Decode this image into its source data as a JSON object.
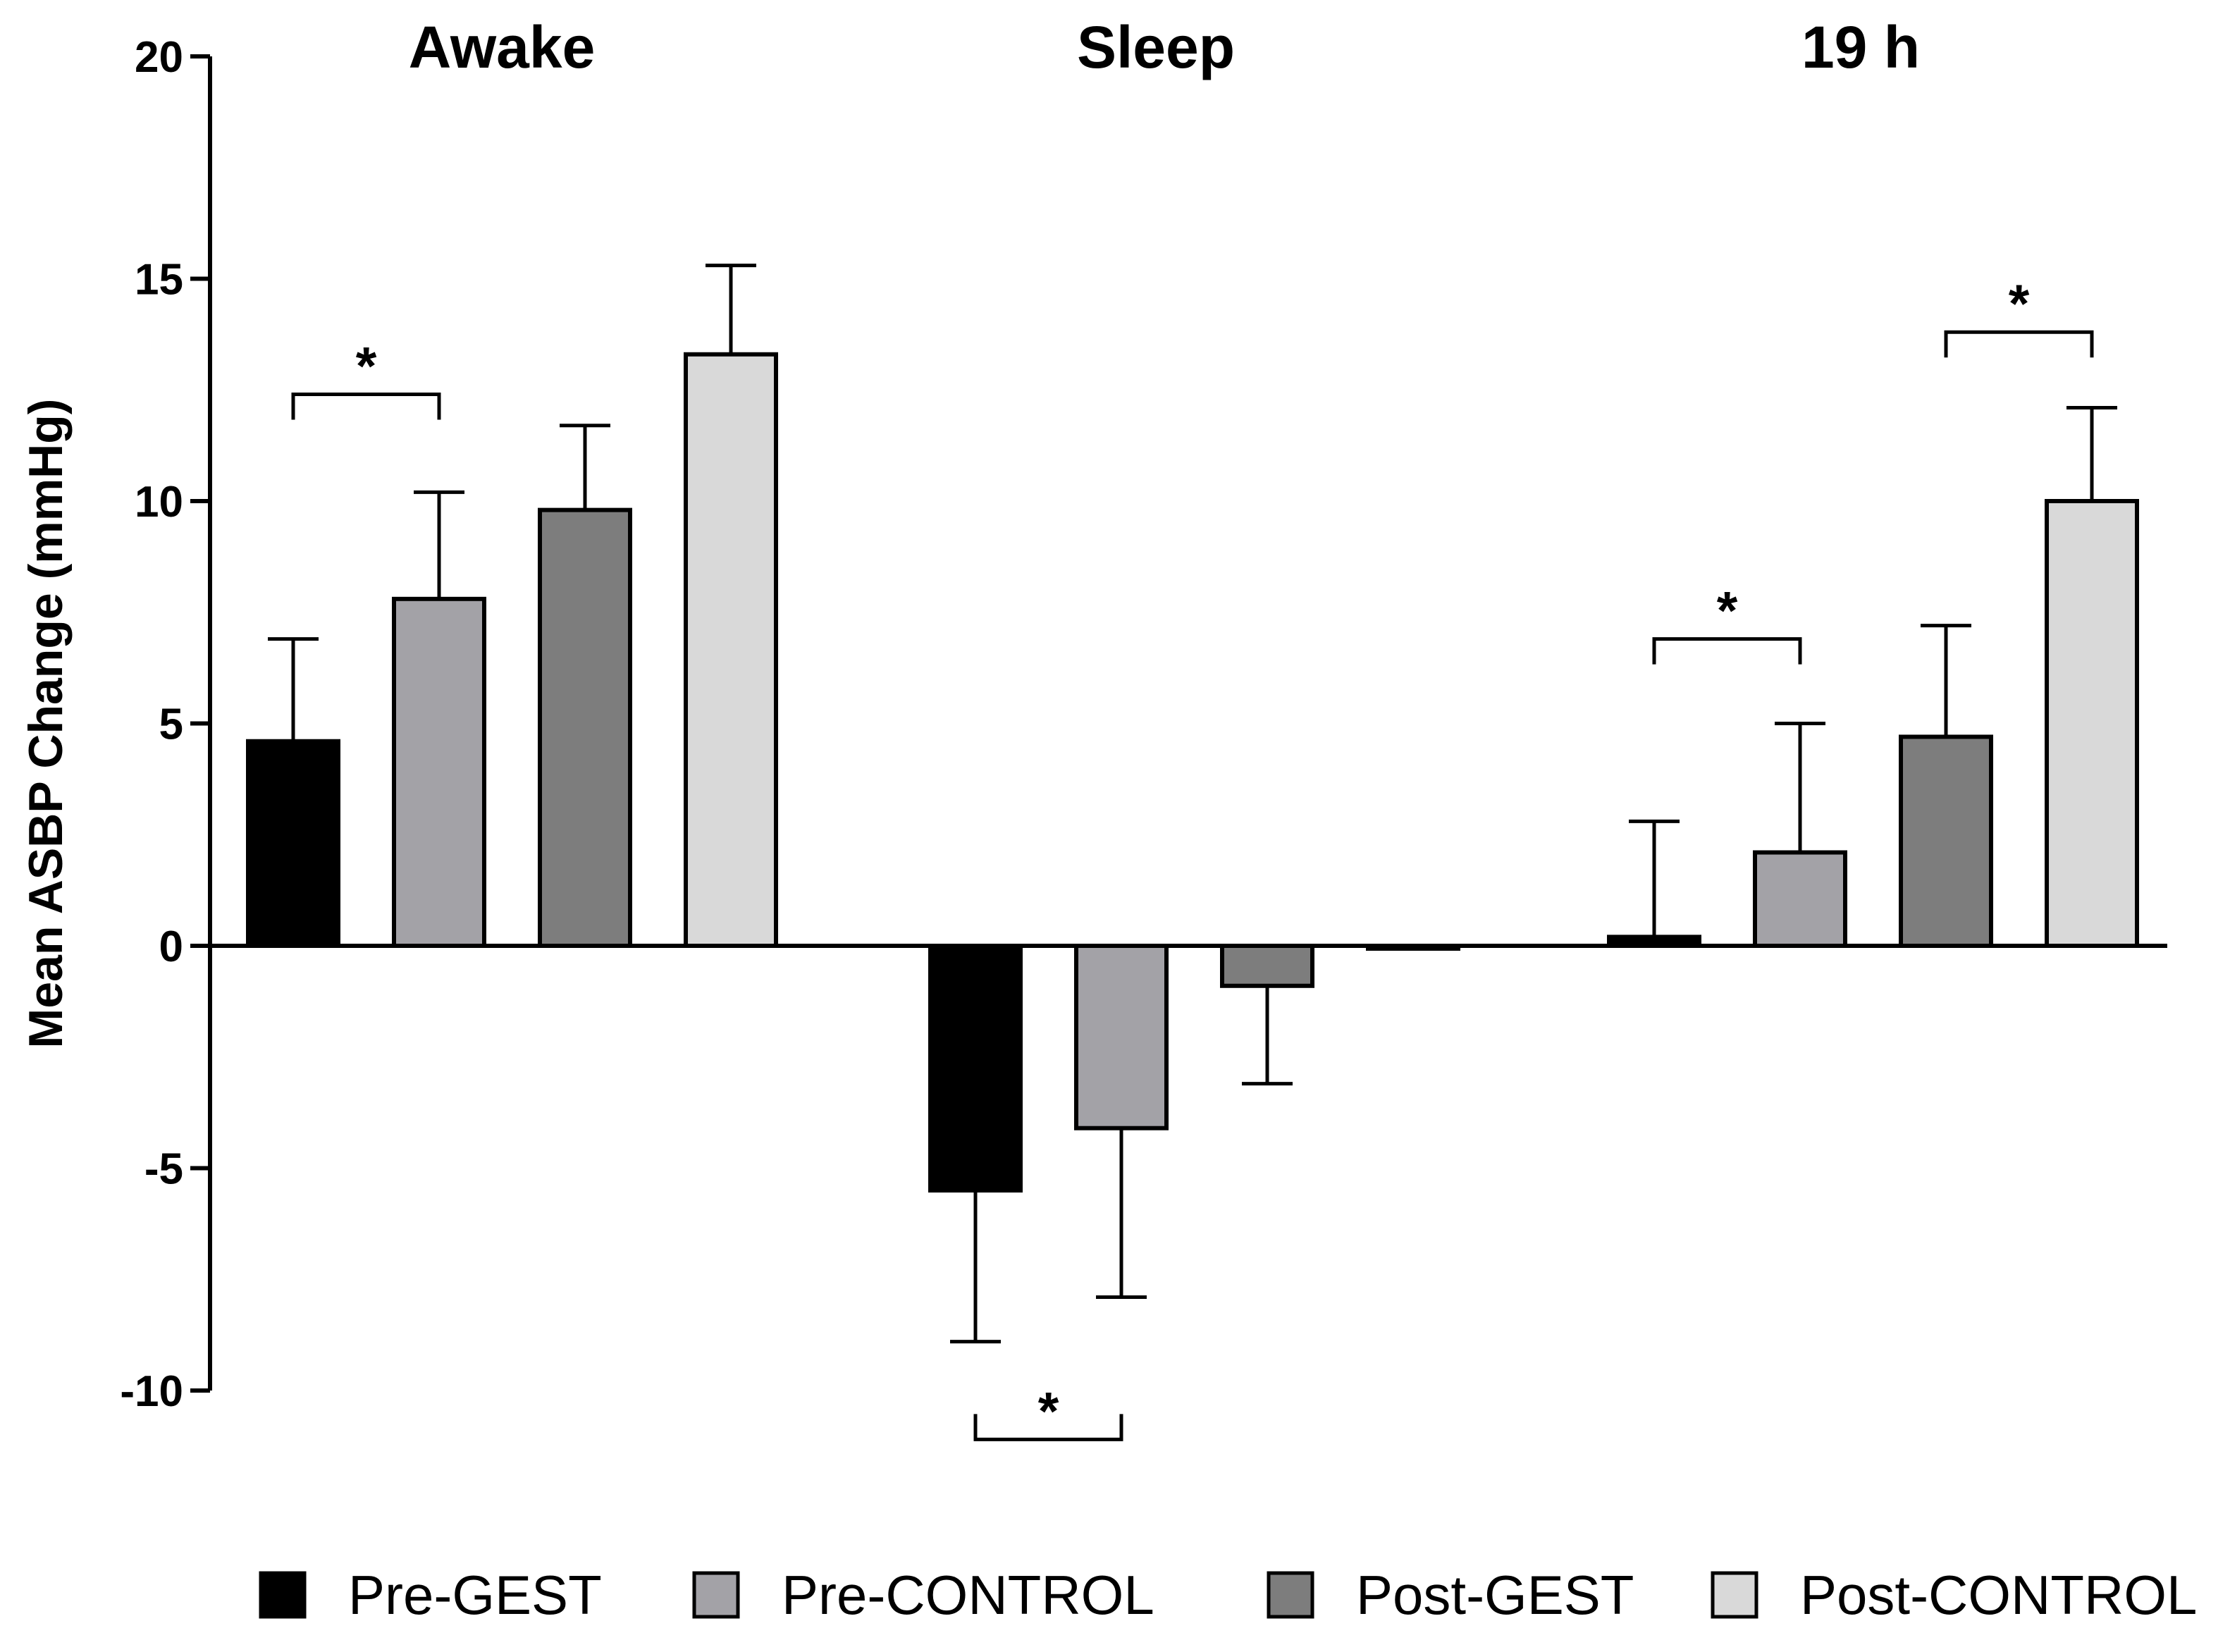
{
  "chart_data": {
    "type": "bar",
    "title": "",
    "xlabel": "",
    "ylabel": "Mean ASBP Change (mmHg)",
    "ylim": [
      -10,
      20
    ],
    "yticks": [
      "20",
      "15",
      "10",
      "5",
      "0",
      "-5",
      "-10"
    ],
    "yticks_values": [
      20,
      15,
      10,
      5,
      0,
      -5,
      -10
    ],
    "categories": [
      "Awake",
      "Sleep",
      "19 h"
    ],
    "series": [
      {
        "name": "Pre-GEST",
        "color": "#000000",
        "values": [
          4.6,
          -5.5,
          0.2
        ],
        "errors": [
          2.3,
          3.4,
          2.6
        ]
      },
      {
        "name": "Pre-CONTROL",
        "color": "#a3a2a7",
        "values": [
          7.8,
          -4.1,
          2.1
        ],
        "errors": [
          2.4,
          3.8,
          2.9
        ]
      },
      {
        "name": "Post-GEST",
        "color": "#7d7d7d",
        "values": [
          9.8,
          -0.9,
          4.7
        ],
        "errors": [
          1.9,
          2.2,
          2.5
        ]
      },
      {
        "name": "Post-CONTROL",
        "color": "#d9d9d9",
        "values": [
          13.3,
          0.0,
          10.0
        ],
        "errors": [
          2.0,
          0.0,
          2.1
        ]
      }
    ],
    "error_directions": [
      [
        "up",
        "down",
        "up"
      ],
      [
        "up",
        "down",
        "up"
      ],
      [
        "up",
        "down",
        "up"
      ],
      [
        "up",
        "none",
        "up"
      ]
    ],
    "significance": [
      {
        "group": 0,
        "from_series": 0,
        "to_series": 1,
        "level": 12.4,
        "orientation": "up",
        "label": "*"
      },
      {
        "group": 1,
        "from_series": 0,
        "to_series": 1,
        "level": -11.1,
        "orientation": "down",
        "label": "*"
      },
      {
        "group": 2,
        "from_series": 0,
        "to_series": 1,
        "level": 6.9,
        "orientation": "up",
        "label": "*"
      },
      {
        "group": 2,
        "from_series": 2,
        "to_series": 3,
        "level": 13.8,
        "orientation": "up",
        "label": "*"
      }
    ],
    "legend": [
      "Pre-GEST",
      "Pre-CONTROL",
      "Post-GEST",
      "Post-CONTROL"
    ],
    "legend_position": "bottom"
  }
}
